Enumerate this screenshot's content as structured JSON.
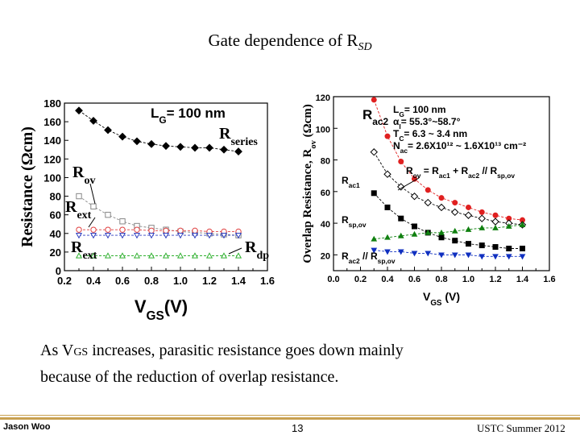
{
  "slide": {
    "title_main": "Gate dependence of R",
    "title_sub": "SD",
    "caption_line1_pre": "As V",
    "caption_line1_sub": "GS",
    "caption_line1_post": " increases, parasitic resistance goes down mainly",
    "caption_line2": "because of the reduction of overlap resistance.",
    "footer_left": "Jason Woo",
    "footer_center": "13",
    "footer_right": "USTC  Summer 2012"
  },
  "chart_data": [
    {
      "type": "line",
      "xlim": [
        0.2,
        1.6
      ],
      "ylim": [
        0,
        180
      ],
      "xticks": [
        "0.2",
        "0.4",
        "0.6",
        "0.8",
        "1.0",
        "1.2",
        "1.4",
        "1.6"
      ],
      "yticks": [
        "0",
        "20",
        "40",
        "60",
        "80",
        "100",
        "120",
        "140",
        "160",
        "180"
      ],
      "xlabel": "V",
      "xlabel_sub": "GS",
      "xlabel_suffix": "(V)",
      "ylabel": "Resistance (Ωcm)",
      "annotation_lg": "L",
      "annotation_lg_sub": "G",
      "annotation_lg_suffix": "= 100 nm",
      "x": [
        0.3,
        0.4,
        0.5,
        0.6,
        0.7,
        0.8,
        0.9,
        1.0,
        1.1,
        1.2,
        1.3,
        1.4
      ],
      "series": [
        {
          "name": "Rseries",
          "label_main": "R",
          "label_sub": "series",
          "marker": "diamond-filled",
          "color": "#000000",
          "values": [
            172,
            161,
            151,
            144,
            139,
            136,
            134,
            133,
            132,
            132,
            130,
            128
          ]
        },
        {
          "name": "Rov",
          "label_main": "R",
          "label_sub": "ov",
          "marker": "square-open",
          "color": "#888888",
          "values": [
            80,
            69,
            60,
            53,
            48,
            46,
            44,
            42,
            41,
            40,
            39,
            38
          ]
        },
        {
          "name": "Rext",
          "label_main": "R",
          "label_sub": "ext",
          "marker": "circle-open",
          "color": "#e04040",
          "values": [
            44,
            44,
            44,
            44,
            44,
            43,
            43,
            43,
            43,
            42,
            42,
            42
          ]
        },
        {
          "name": "Rext2",
          "marker": "triangle-down-open",
          "color": "#3040c0",
          "values": [
            38,
            38,
            38,
            38,
            38,
            38,
            38,
            38,
            38,
            38,
            38,
            38
          ]
        },
        {
          "name": "Rdp",
          "label_main": "R",
          "label_sub": "dp",
          "marker": "triangle-up-open",
          "color": "#30b030",
          "values": [
            16,
            16,
            16,
            16,
            16,
            16,
            16,
            16,
            16,
            16,
            16,
            16
          ]
        }
      ]
    },
    {
      "type": "line",
      "xlim": [
        0.0,
        1.6
      ],
      "ylim": [
        10,
        120
      ],
      "xticks": [
        "0.0",
        "0.2",
        "0.4",
        "0.6",
        "0.8",
        "1.0",
        "1.2",
        "1.4",
        "1.6"
      ],
      "yticks": [
        "20",
        "40",
        "60",
        "80",
        "100",
        "120"
      ],
      "xlabel": "V",
      "xlabel_sub": "GS",
      "xlabel_suffix": " (V)",
      "ylabel": "Overlap Resistance, R",
      "ylabel_sub": "ov",
      "ylabel_suffix": " (Ωcm)",
      "annotations": {
        "lg": "L",
        "lg_sub": "G",
        "lg_suffix": "= 100 nm",
        "alpha": "α",
        "alpha_sub": "I",
        "alpha_suffix": "= 55.3°~58.7°",
        "tc": "T",
        "tc_sub": "C",
        "tc_suffix": "= 6.3 ~ 3.4 nm",
        "nac": "N",
        "nac_sub": "ac",
        "nac_suffix": "= 2.6X10¹² ~ 1.6X10¹³ cm⁻²",
        "rov_eq": "R",
        "rov_eq_sub": "ov",
        "rov_eq_suffix": " = R",
        "rov_eq_sub2": "ac1",
        "rov_eq_mid": " + R",
        "rov_eq_sub3": "ac2",
        "rov_eq_end": " // R",
        "rov_eq_sub4": "sp,ov",
        "label_rac2": "R",
        "label_rac2_sub": "ac2",
        "label_rac1": "R",
        "label_rac1_sub": "ac1",
        "label_rspov": "R",
        "label_rspov_sub": "sp,ov",
        "label_combo": "R",
        "label_combo_sub": "ac2",
        "label_combo_mid": " // R",
        "label_combo_sub2": "sp,ov"
      },
      "x": [
        0.3,
        0.4,
        0.5,
        0.6,
        0.7,
        0.8,
        0.9,
        1.0,
        1.1,
        1.2,
        1.3,
        1.4
      ],
      "series": [
        {
          "name": "Rac2",
          "marker": "circle-filled",
          "color": "#e02020",
          "values": [
            118,
            95,
            79,
            68,
            61,
            56,
            53,
            50,
            47,
            45,
            43,
            42
          ]
        },
        {
          "name": "Rov",
          "marker": "diamond-open",
          "color": "#000000",
          "values": [
            85,
            71,
            63,
            57,
            53,
            50,
            47,
            45,
            43,
            41,
            40,
            39
          ]
        },
        {
          "name": "Rac1",
          "marker": "square-filled",
          "color": "#000000",
          "values": [
            59,
            50,
            43,
            38,
            34,
            31,
            29,
            27,
            26,
            25,
            24,
            24
          ]
        },
        {
          "name": "Rsp,ov",
          "marker": "triangle-up-filled",
          "color": "#108010",
          "values": [
            30,
            31,
            32,
            33,
            34,
            34,
            35,
            36,
            37,
            37,
            38,
            39
          ]
        },
        {
          "name": "Rac2//Rsp,ov",
          "marker": "triangle-down-filled",
          "color": "#1030c0",
          "values": [
            23,
            22,
            22,
            21,
            21,
            20,
            20,
            20,
            19,
            19,
            19,
            19
          ]
        }
      ]
    }
  ]
}
